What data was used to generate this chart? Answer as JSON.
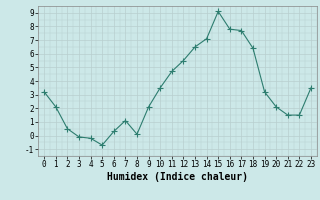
{
  "xlabel": "Humidex (Indice chaleur)",
  "x": [
    0,
    1,
    2,
    3,
    4,
    5,
    6,
    7,
    8,
    9,
    10,
    11,
    12,
    13,
    14,
    15,
    16,
    17,
    18,
    19,
    20,
    21,
    22,
    23
  ],
  "y": [
    3.2,
    2.1,
    0.5,
    -0.1,
    -0.2,
    -0.7,
    0.3,
    1.1,
    0.1,
    2.1,
    3.5,
    4.7,
    5.5,
    6.5,
    7.1,
    9.1,
    7.8,
    7.7,
    6.4,
    3.2,
    2.1,
    1.5,
    1.5,
    3.5
  ],
  "line_color": "#2d7d6f",
  "marker": "+",
  "marker_size": 4,
  "bg_color": "#cce8e8",
  "grid_color": "#b8cfcf",
  "xlim": [
    -0.5,
    23.5
  ],
  "ylim": [
    -1.5,
    9.5
  ],
  "yticks": [
    -1,
    0,
    1,
    2,
    3,
    4,
    5,
    6,
    7,
    8,
    9
  ],
  "xticks": [
    0,
    1,
    2,
    3,
    4,
    5,
    6,
    7,
    8,
    9,
    10,
    11,
    12,
    13,
    14,
    15,
    16,
    17,
    18,
    19,
    20,
    21,
    22,
    23
  ],
  "tick_fontsize": 5.5,
  "label_fontsize": 7
}
